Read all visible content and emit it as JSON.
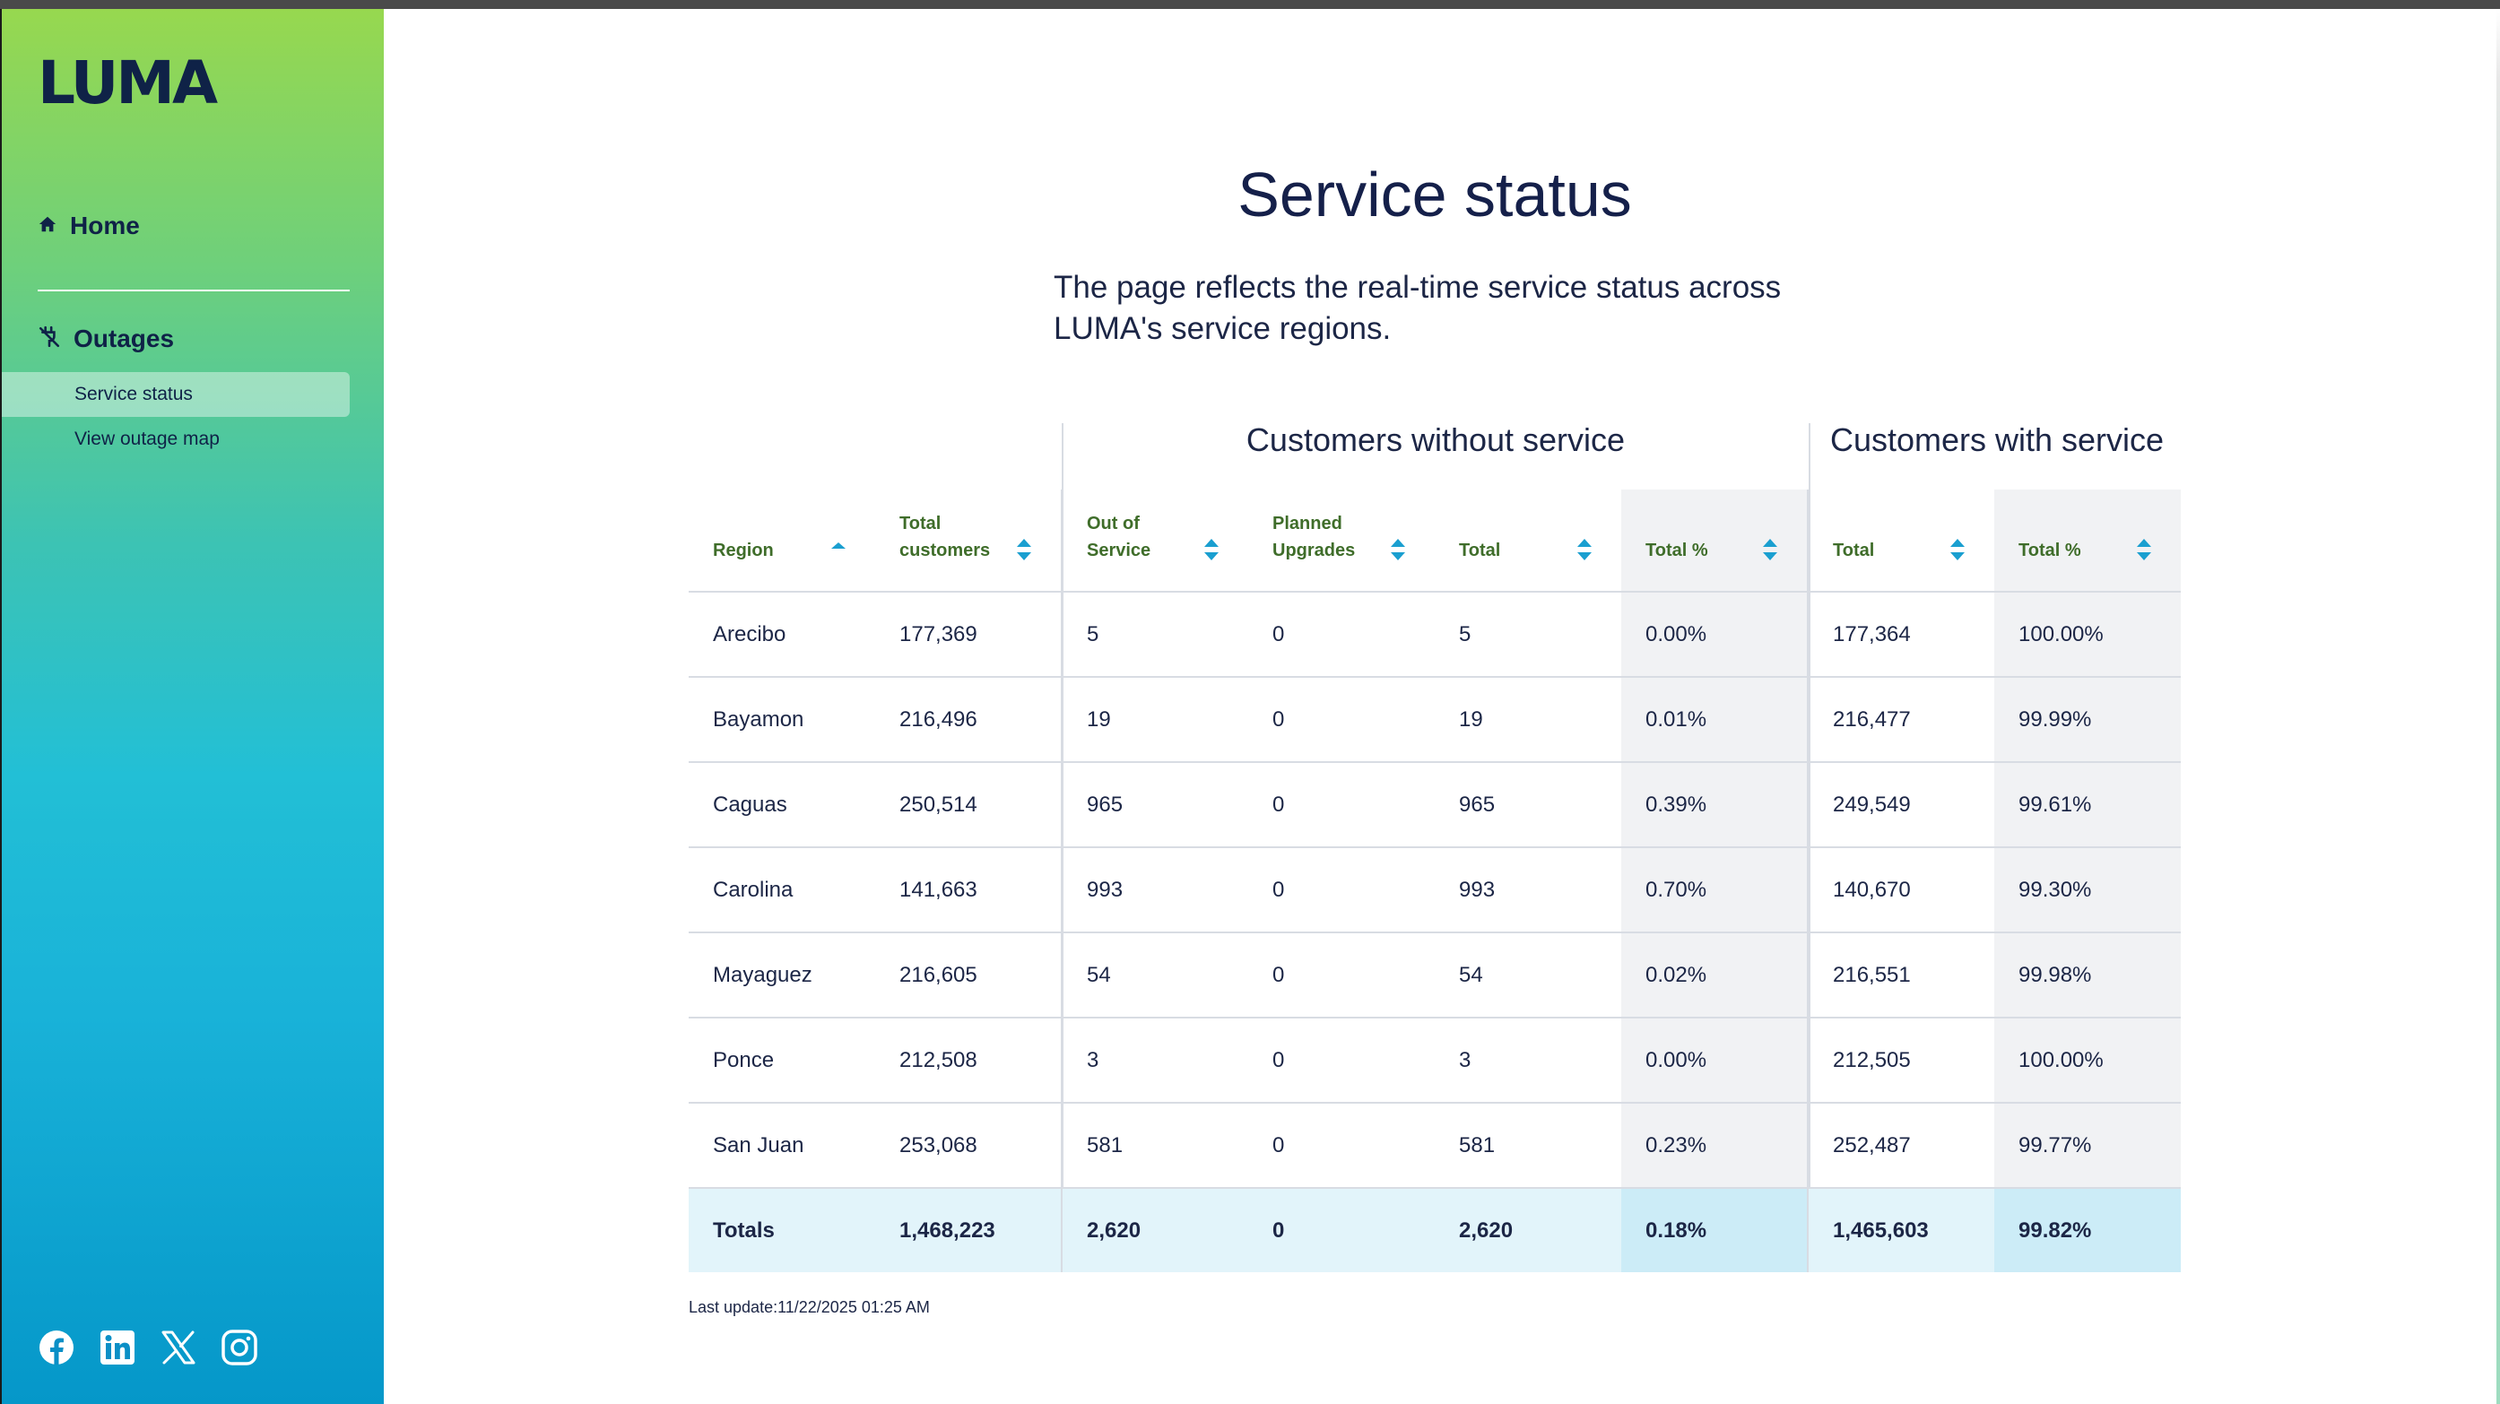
{
  "sidebar": {
    "logo_text": "LUMA",
    "nav": {
      "home_label": "Home",
      "outages_label": "Outages",
      "service_status_label": "Service status",
      "outage_map_label": "View outage map"
    },
    "social_icons": [
      "facebook-icon",
      "linkedin-icon",
      "x-icon",
      "instagram-icon"
    ]
  },
  "page": {
    "title": "Service status",
    "intro": "The page reflects the real-time service status across LUMA's service regions."
  },
  "table": {
    "group_without": "Customers without service",
    "group_with": "Customers with service",
    "headers": {
      "region": "Region",
      "total_customers_1": "Total",
      "total_customers_2": "customers",
      "out_1": "Out of",
      "out_2": "Service",
      "planned_1": "Planned",
      "planned_2": "Upgrades",
      "total": "Total",
      "total_pct": "Total %",
      "with_total": "Total",
      "with_pct": "Total %"
    },
    "rows": [
      {
        "region": "Arecibo",
        "total_customers": "177,369",
        "out": "5",
        "planned": "0",
        "total": "5",
        "pct": "0.00%",
        "with_total": "177,364",
        "with_pct": "100.00%"
      },
      {
        "region": "Bayamon",
        "total_customers": "216,496",
        "out": "19",
        "planned": "0",
        "total": "19",
        "pct": "0.01%",
        "with_total": "216,477",
        "with_pct": "99.99%"
      },
      {
        "region": "Caguas",
        "total_customers": "250,514",
        "out": "965",
        "planned": "0",
        "total": "965",
        "pct": "0.39%",
        "with_total": "249,549",
        "with_pct": "99.61%"
      },
      {
        "region": "Carolina",
        "total_customers": "141,663",
        "out": "993",
        "planned": "0",
        "total": "993",
        "pct": "0.70%",
        "with_total": "140,670",
        "with_pct": "99.30%"
      },
      {
        "region": "Mayaguez",
        "total_customers": "216,605",
        "out": "54",
        "planned": "0",
        "total": "54",
        "pct": "0.02%",
        "with_total": "216,551",
        "with_pct": "99.98%"
      },
      {
        "region": "Ponce",
        "total_customers": "212,508",
        "out": "3",
        "planned": "0",
        "total": "3",
        "pct": "0.00%",
        "with_total": "212,505",
        "with_pct": "100.00%"
      },
      {
        "region": "San Juan",
        "total_customers": "253,068",
        "out": "581",
        "planned": "0",
        "total": "581",
        "pct": "0.23%",
        "with_total": "252,487",
        "with_pct": "99.77%"
      }
    ],
    "totals": {
      "region": "Totals",
      "total_customers": "1,468,223",
      "out": "2,620",
      "planned": "0",
      "total": "2,620",
      "pct": "0.18%",
      "with_total": "1,465,603",
      "with_pct": "99.82%"
    }
  },
  "last_update": "Last update:11/22/2025 01:25 AM",
  "colors": {
    "navy": "#0f2247",
    "header_green": "#3f6d2a",
    "sort_blue": "#1a9fd0",
    "totals_bg": "#e2f4fa"
  }
}
